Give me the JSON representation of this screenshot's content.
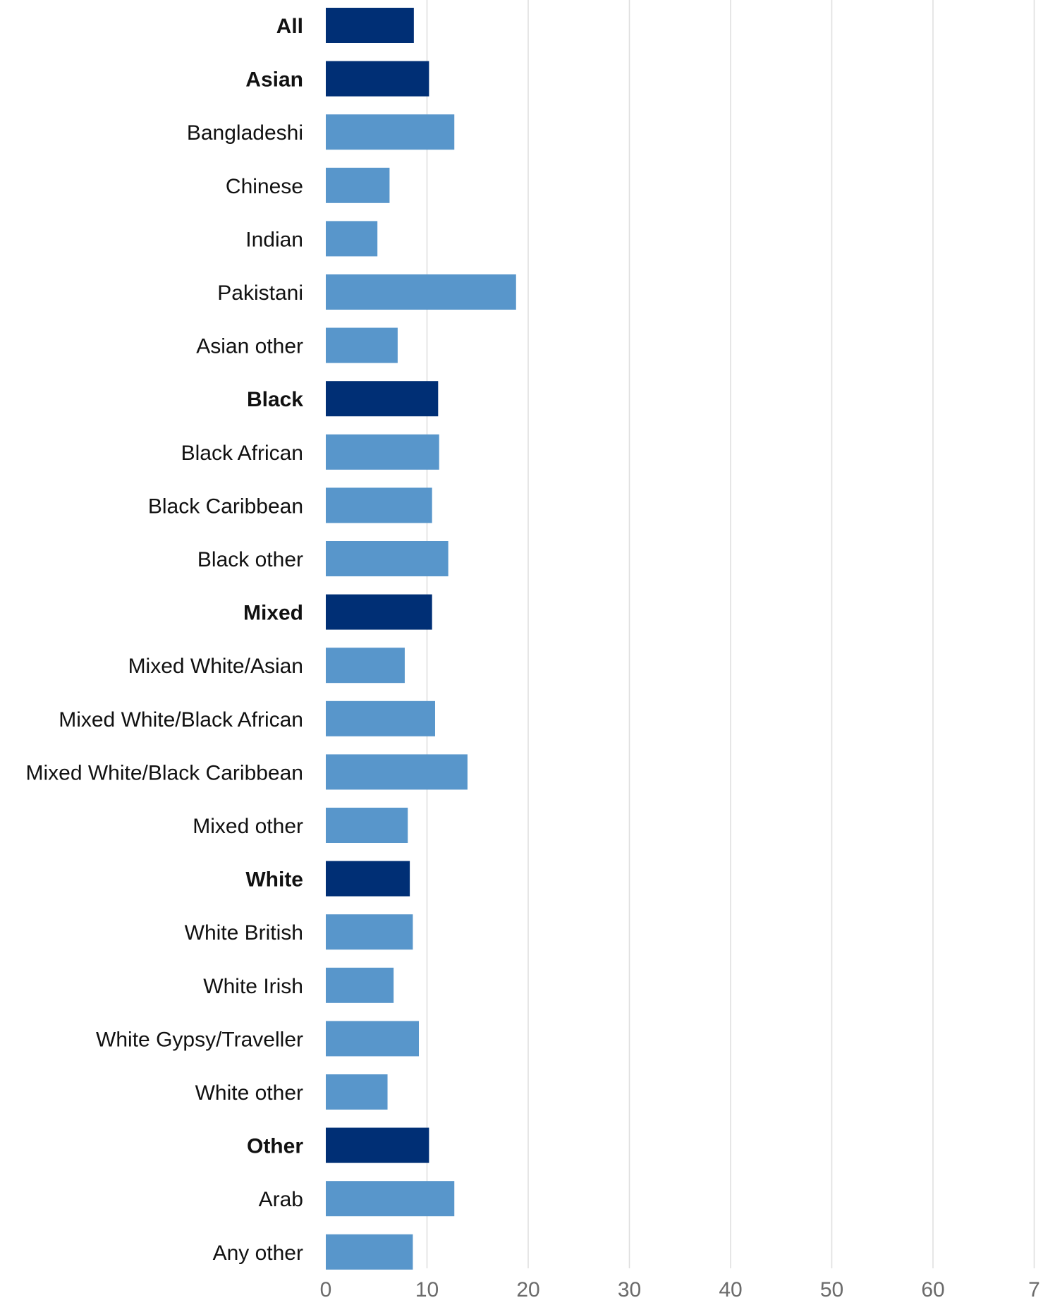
{
  "chart_data": {
    "type": "bar",
    "orientation": "horizontal",
    "title": "",
    "xlabel": "",
    "ylabel": "",
    "xlim": [
      0,
      70
    ],
    "grid": "vertical",
    "x_ticks": [
      "0",
      "10",
      "20",
      "30",
      "40",
      "50",
      "60",
      "7"
    ],
    "colors": {
      "group": "#002f75",
      "subgroup": "#5896cb",
      "grid": "#dedede"
    },
    "categories": [
      {
        "label": "All",
        "value": 8.7,
        "group": true
      },
      {
        "label": "Asian",
        "value": 10.2,
        "group": true
      },
      {
        "label": "Bangladeshi",
        "value": 12.7,
        "group": false
      },
      {
        "label": "Chinese",
        "value": 6.3,
        "group": false
      },
      {
        "label": "Indian",
        "value": 5.1,
        "group": false
      },
      {
        "label": "Pakistani",
        "value": 18.8,
        "group": false
      },
      {
        "label": "Asian other",
        "value": 7.1,
        "group": false
      },
      {
        "label": "Black",
        "value": 11.1,
        "group": true
      },
      {
        "label": "Black African",
        "value": 11.2,
        "group": false
      },
      {
        "label": "Black Caribbean",
        "value": 10.5,
        "group": false
      },
      {
        "label": "Black other",
        "value": 12.1,
        "group": false
      },
      {
        "label": "Mixed",
        "value": 10.5,
        "group": true
      },
      {
        "label": "Mixed White/Asian",
        "value": 7.8,
        "group": false
      },
      {
        "label": "Mixed White/Black African",
        "value": 10.8,
        "group": false
      },
      {
        "label": "Mixed White/Black Caribbean",
        "value": 14.0,
        "group": false
      },
      {
        "label": "Mixed other",
        "value": 8.1,
        "group": false
      },
      {
        "label": "White",
        "value": 8.3,
        "group": true
      },
      {
        "label": "White British",
        "value": 8.6,
        "group": false
      },
      {
        "label": "White Irish",
        "value": 6.7,
        "group": false
      },
      {
        "label": "White Gypsy/Traveller",
        "value": 9.2,
        "group": false
      },
      {
        "label": "White other",
        "value": 6.1,
        "group": false
      },
      {
        "label": "Other",
        "value": 10.2,
        "group": true
      },
      {
        "label": "Arab",
        "value": 12.7,
        "group": false
      },
      {
        "label": "Any other",
        "value": 8.6,
        "group": false
      }
    ]
  }
}
